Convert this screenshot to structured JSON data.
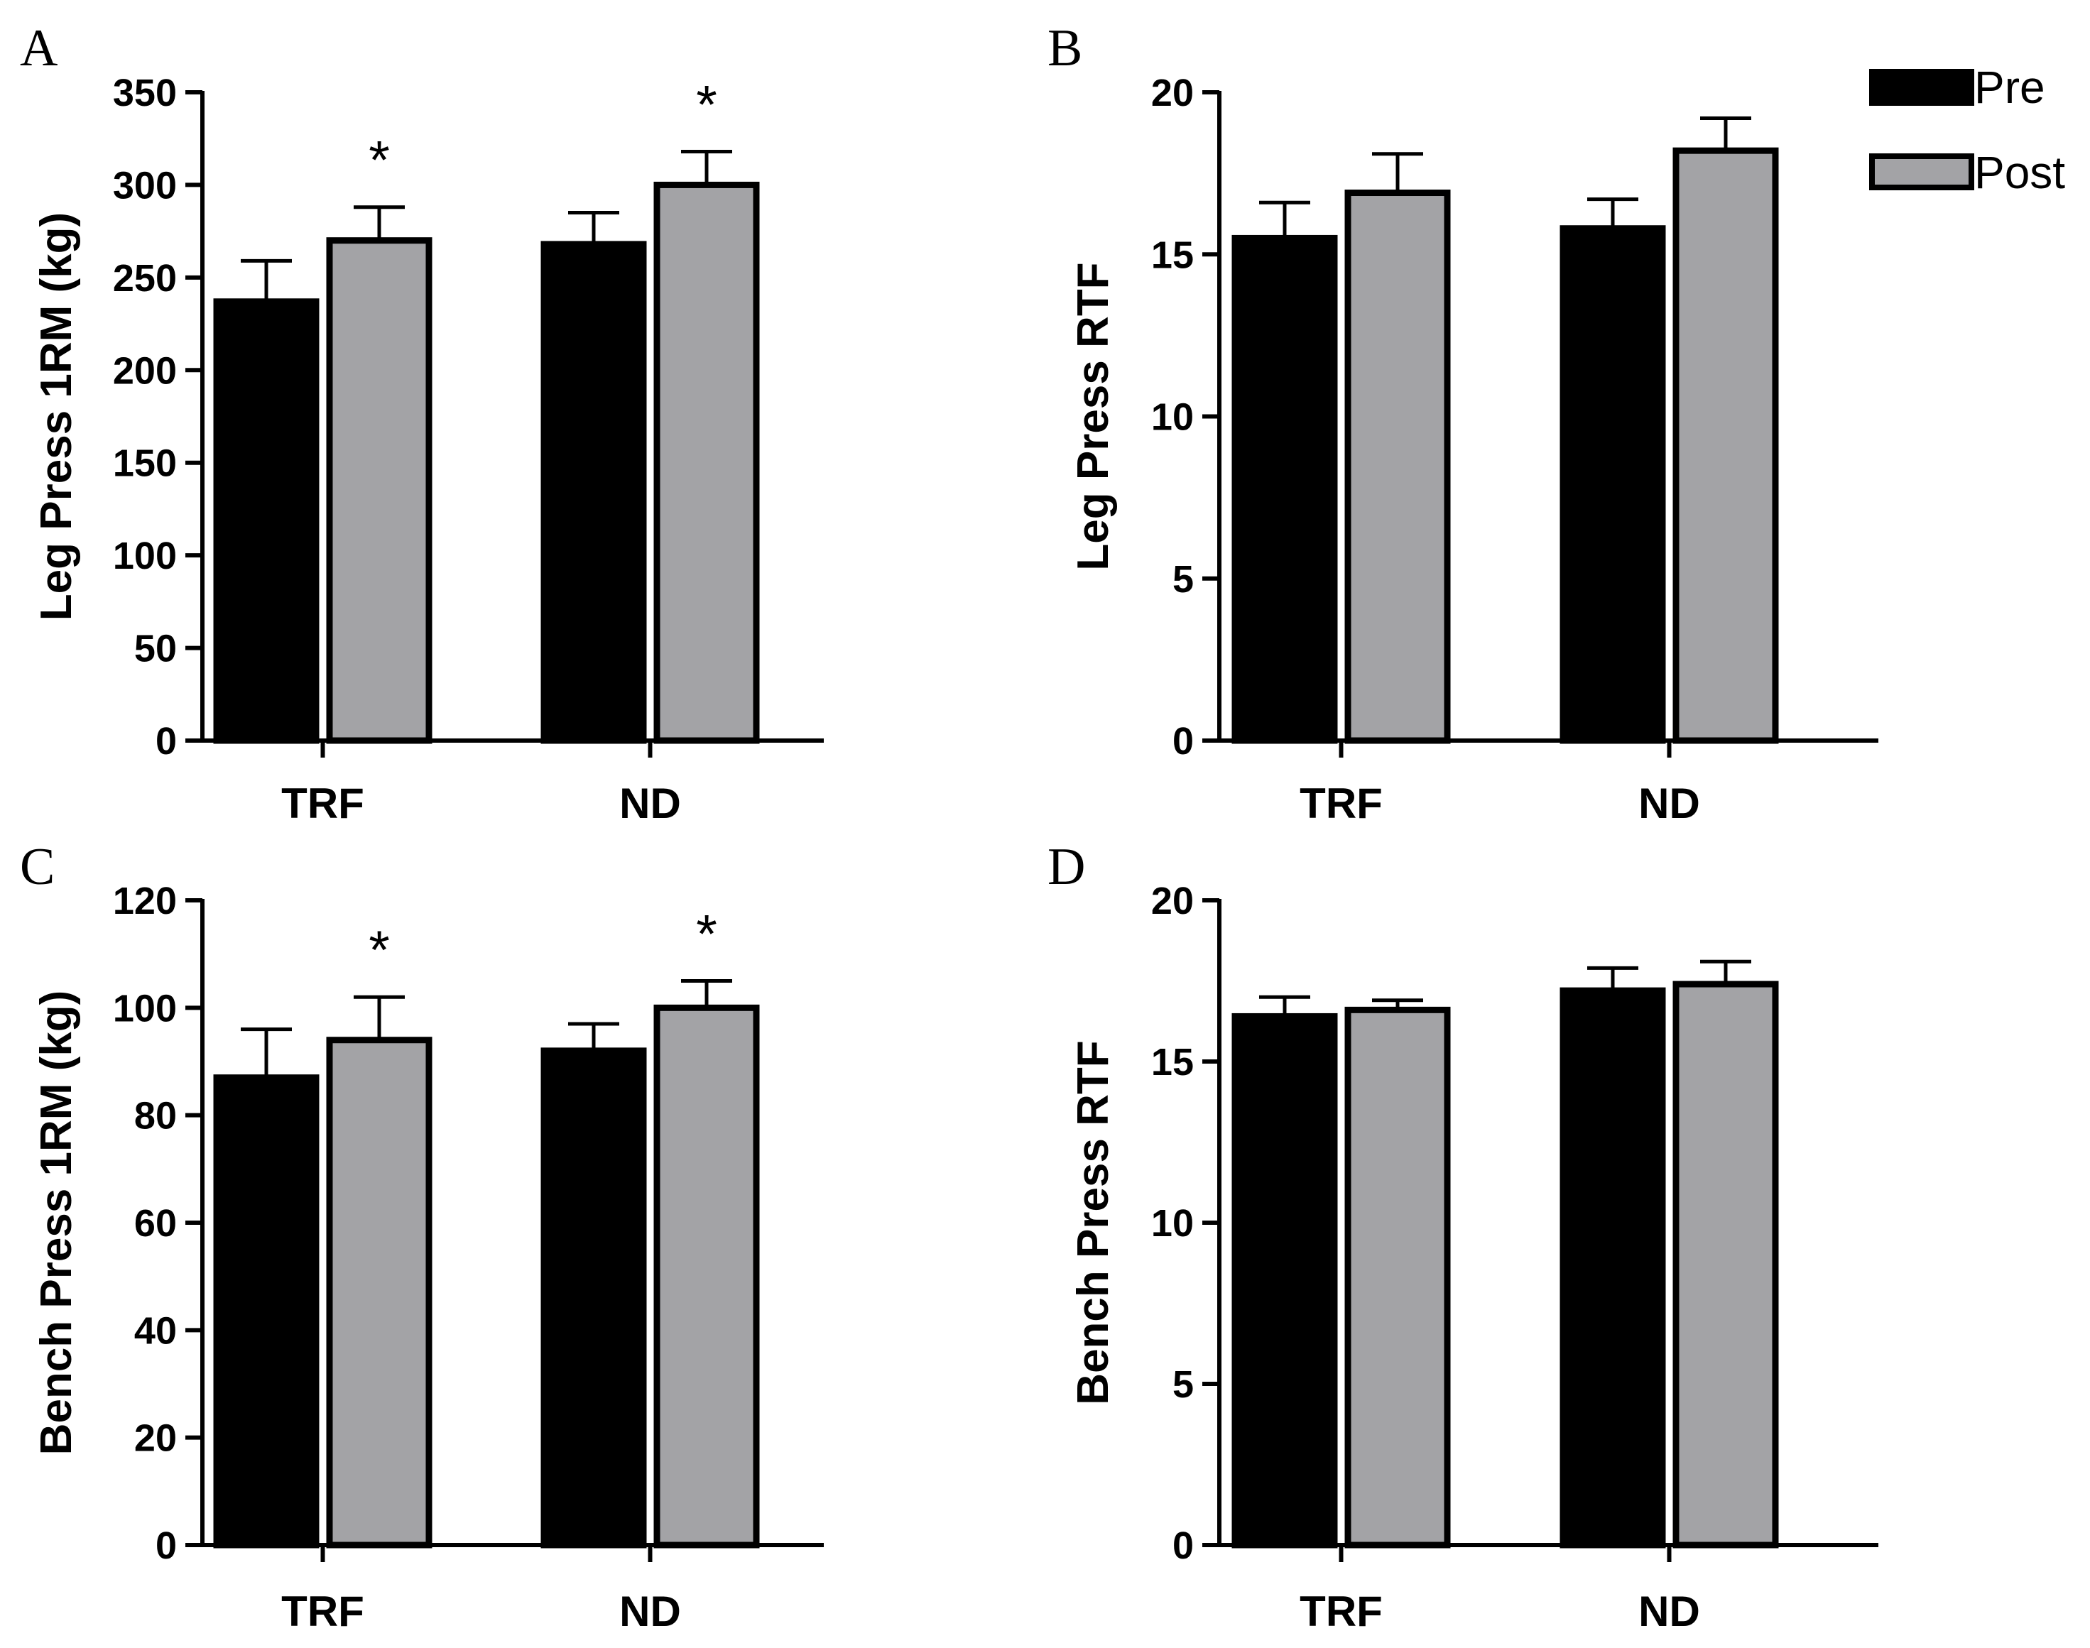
{
  "legend": {
    "entries": [
      {
        "name": "Pre",
        "color": "#000000"
      },
      {
        "name": "Post",
        "color": "#a3a3a6"
      }
    ]
  },
  "colors": {
    "pre": "#000000",
    "post": "#a3a3a6",
    "axis": "#000000"
  },
  "chart_data": [
    {
      "panel": "A",
      "type": "bar",
      "title": "",
      "xlabel": "",
      "ylabel": "Leg Press 1RM (kg)",
      "categories": [
        "TRF",
        "ND"
      ],
      "ylim": [
        0,
        350
      ],
      "yticks": [
        0,
        50,
        100,
        150,
        200,
        250,
        300,
        350
      ],
      "series": [
        {
          "name": "Pre",
          "values": [
            237,
            268
          ],
          "errors": [
            22,
            17
          ]
        },
        {
          "name": "Post",
          "values": [
            270,
            300
          ],
          "errors": [
            18,
            18
          ]
        }
      ],
      "annotations": [
        {
          "text": "*",
          "category": "TRF",
          "series": "Post"
        },
        {
          "text": "*",
          "category": "ND",
          "series": "Post"
        }
      ]
    },
    {
      "panel": "B",
      "type": "bar",
      "title": "",
      "xlabel": "",
      "ylabel": "Leg Press RTF",
      "categories": [
        "TRF",
        "ND"
      ],
      "ylim": [
        0,
        20
      ],
      "yticks": [
        0,
        5,
        10,
        15,
        20
      ],
      "series": [
        {
          "name": "Pre",
          "values": [
            15.5,
            15.8
          ],
          "errors": [
            1.1,
            0.9
          ]
        },
        {
          "name": "Post",
          "values": [
            16.9,
            18.2
          ],
          "errors": [
            1.2,
            1.0
          ]
        }
      ],
      "annotations": []
    },
    {
      "panel": "C",
      "type": "bar",
      "title": "",
      "xlabel": "",
      "ylabel": "Bench Press 1RM (kg)",
      "categories": [
        "TRF",
        "ND"
      ],
      "ylim": [
        0,
        120
      ],
      "yticks": [
        0,
        20,
        40,
        60,
        80,
        100,
        120
      ],
      "series": [
        {
          "name": "Pre",
          "values": [
            87,
            92
          ],
          "errors": [
            9,
            5
          ]
        },
        {
          "name": "Post",
          "values": [
            94,
            100
          ],
          "errors": [
            8,
            5
          ]
        }
      ],
      "annotations": [
        {
          "text": "*",
          "category": "TRF",
          "series": "Post"
        },
        {
          "text": "*",
          "category": "ND",
          "series": "Post"
        }
      ]
    },
    {
      "panel": "D",
      "type": "bar",
      "title": "",
      "xlabel": "",
      "ylabel": "Bench Press RTF",
      "categories": [
        "TRF",
        "ND"
      ],
      "ylim": [
        0,
        20
      ],
      "yticks": [
        0,
        5,
        10,
        15,
        20
      ],
      "series": [
        {
          "name": "Pre",
          "values": [
            16.4,
            17.2
          ],
          "errors": [
            0.6,
            0.7
          ]
        },
        {
          "name": "Post",
          "values": [
            16.6,
            17.4
          ],
          "errors": [
            0.3,
            0.7
          ]
        }
      ],
      "annotations": []
    }
  ]
}
